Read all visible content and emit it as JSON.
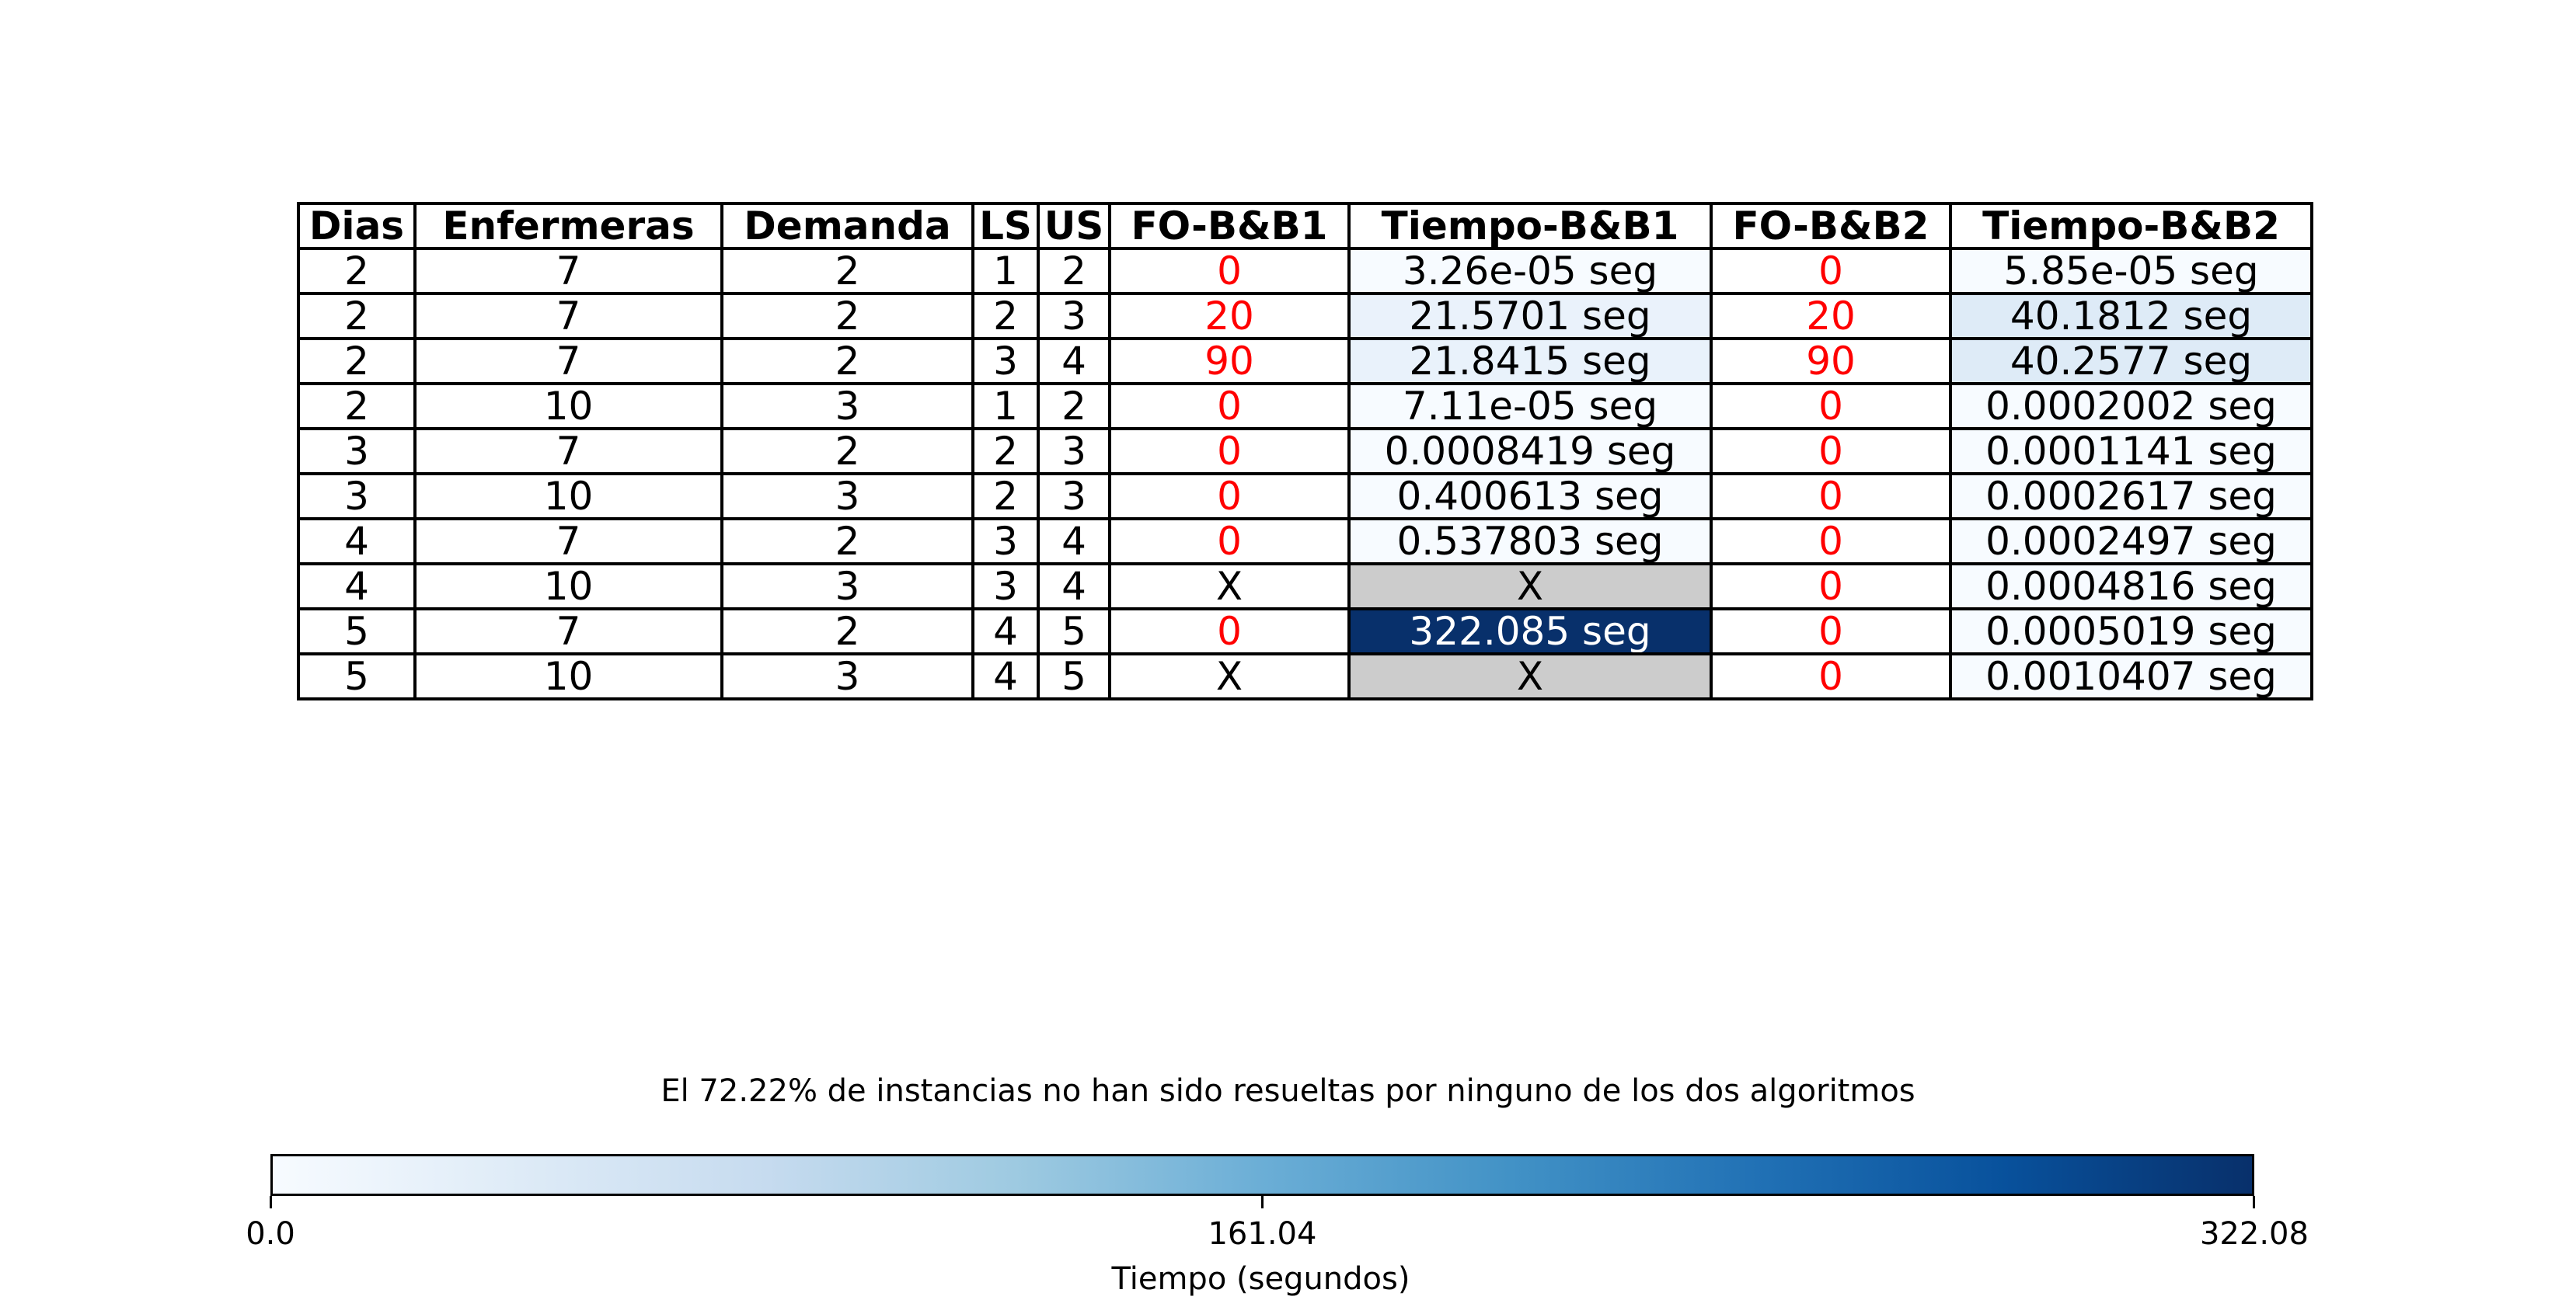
{
  "chart_data": {
    "type": "table",
    "columns": [
      "Dias",
      "Enfermeras",
      "Demanda",
      "LS",
      "US",
      "FO-B&B1",
      "Tiempo-B&B1",
      "FO-B&B2",
      "Tiempo-B&B2"
    ],
    "rows": [
      [
        "2",
        "7",
        "2",
        "1",
        "2",
        "0",
        "3.26e-05 seg",
        "0",
        "5.85e-05 seg"
      ],
      [
        "2",
        "7",
        "2",
        "2",
        "3",
        "20",
        "21.5701 seg",
        "20",
        "40.1812 seg"
      ],
      [
        "2",
        "7",
        "2",
        "3",
        "4",
        "90",
        "21.8415 seg",
        "90",
        "40.2577 seg"
      ],
      [
        "2",
        "10",
        "3",
        "1",
        "2",
        "0",
        "7.11e-05 seg",
        "0",
        "0.0002002 seg"
      ],
      [
        "3",
        "7",
        "2",
        "2",
        "3",
        "0",
        "0.0008419 seg",
        "0",
        "0.0001141 seg"
      ],
      [
        "3",
        "10",
        "3",
        "2",
        "3",
        "0",
        "0.400613 seg",
        "0",
        "0.0002617 seg"
      ],
      [
        "4",
        "7",
        "2",
        "3",
        "4",
        "0",
        "0.537803 seg",
        "0",
        "0.0002497 seg"
      ],
      [
        "4",
        "10",
        "3",
        "3",
        "4",
        "X",
        "X",
        "0",
        "0.0004816 seg"
      ],
      [
        "5",
        "7",
        "2",
        "4",
        "5",
        "0",
        "322.085 seg",
        "0",
        "0.0005019 seg"
      ],
      [
        "5",
        "10",
        "3",
        "4",
        "5",
        "X",
        "X",
        "0",
        "0.0010407 seg"
      ]
    ],
    "time_values_bb1": [
      3.26e-05,
      21.5701,
      21.8415,
      7.11e-05,
      0.0008419,
      0.400613,
      0.537803,
      null,
      322.085,
      null
    ],
    "time_values_bb2": [
      5.85e-05,
      40.1812,
      40.2577,
      0.0002002,
      0.0001141,
      0.0002617,
      0.0002497,
      0.0004816,
      0.0005019,
      0.0010407
    ],
    "note": "El 72.22% de instancias no han sido resueltas por ninguno de los dos algoritmos",
    "colorbar": {
      "label": "Tiempo (segundos)",
      "range": [
        0.0,
        322.085
      ],
      "ticks": [
        0.0,
        161.04,
        322.08
      ],
      "tick_labels": [
        "0.0",
        "161.04",
        "322.08"
      ],
      "colormap": "Blues",
      "stops": [
        "#f7fbff",
        "#deebf7",
        "#c6dbef",
        "#9ecae1",
        "#6baed6",
        "#4292c6",
        "#2171b5",
        "#08519c",
        "#08306b"
      ]
    },
    "colors": {
      "fo_text": "#ff0000",
      "missing_cell": "#cccccc"
    }
  }
}
